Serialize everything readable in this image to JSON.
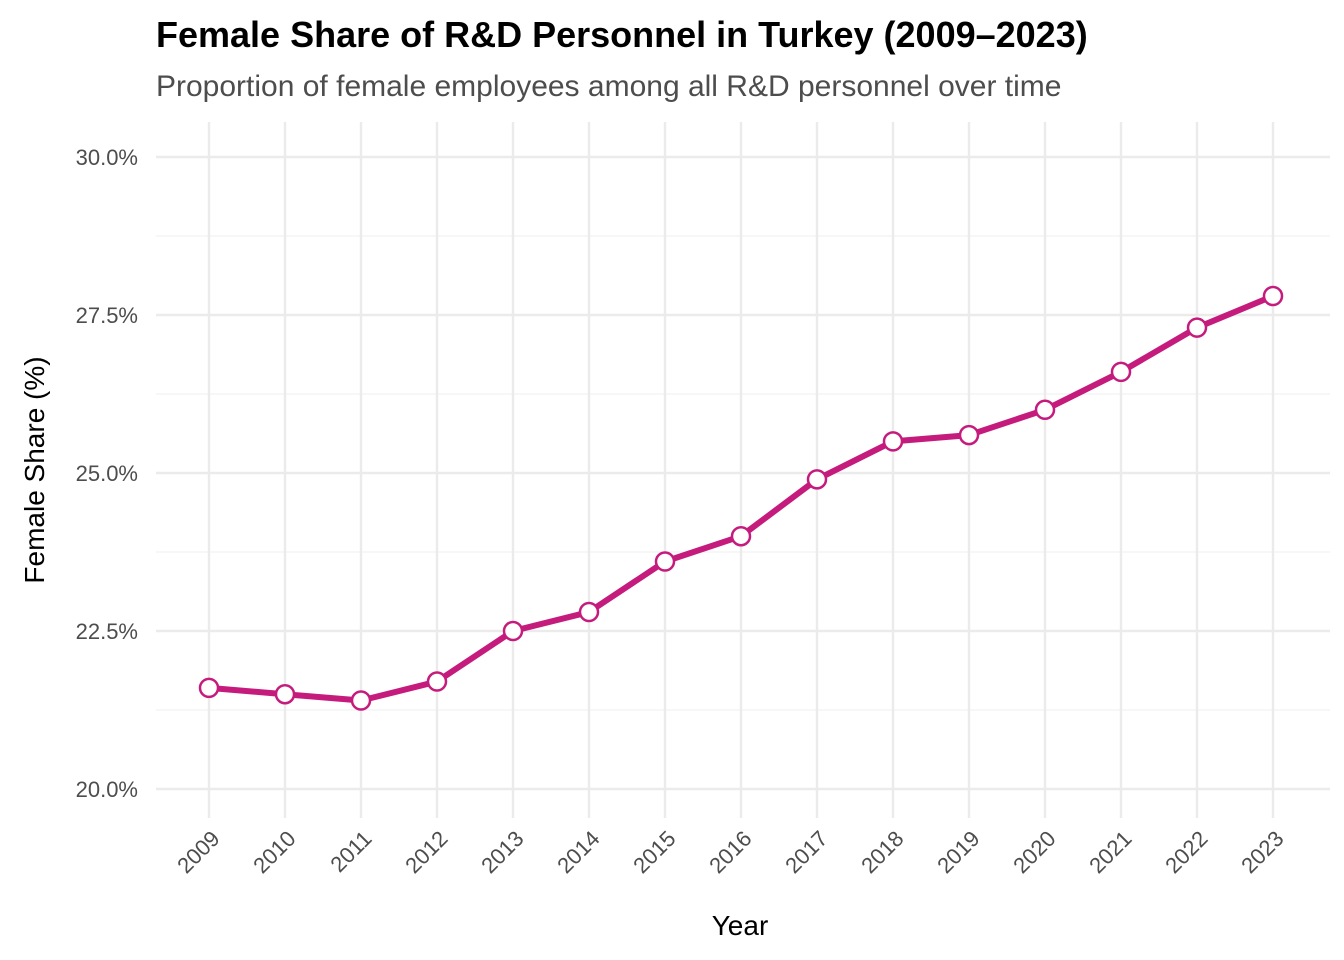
{
  "chart_data": {
    "type": "line",
    "title": "Female Share of R&D Personnel in Turkey (2009–2023)",
    "subtitle": "Proportion of female employees among all R&D personnel over time",
    "xlabel": "Year",
    "ylabel": "Female Share (%)",
    "ylim": [
      20,
      30
    ],
    "y_ticks": [
      20.0,
      22.5,
      25.0,
      27.5,
      30.0
    ],
    "y_tick_labels": [
      "20.0%",
      "22.5%",
      "25.0%",
      "27.5%",
      "30.0%"
    ],
    "x": [
      "2009",
      "2010",
      "2011",
      "2012",
      "2013",
      "2014",
      "2015",
      "2016",
      "2017",
      "2018",
      "2019",
      "2020",
      "2021",
      "2022",
      "2023"
    ],
    "values": [
      21.6,
      21.5,
      21.4,
      21.7,
      22.5,
      22.8,
      23.6,
      24.0,
      24.9,
      25.5,
      25.6,
      26.0,
      26.6,
      27.3,
      27.8
    ],
    "grid": true,
    "line_color": "#C51B7D",
    "marker_fill": "#ffffff"
  }
}
